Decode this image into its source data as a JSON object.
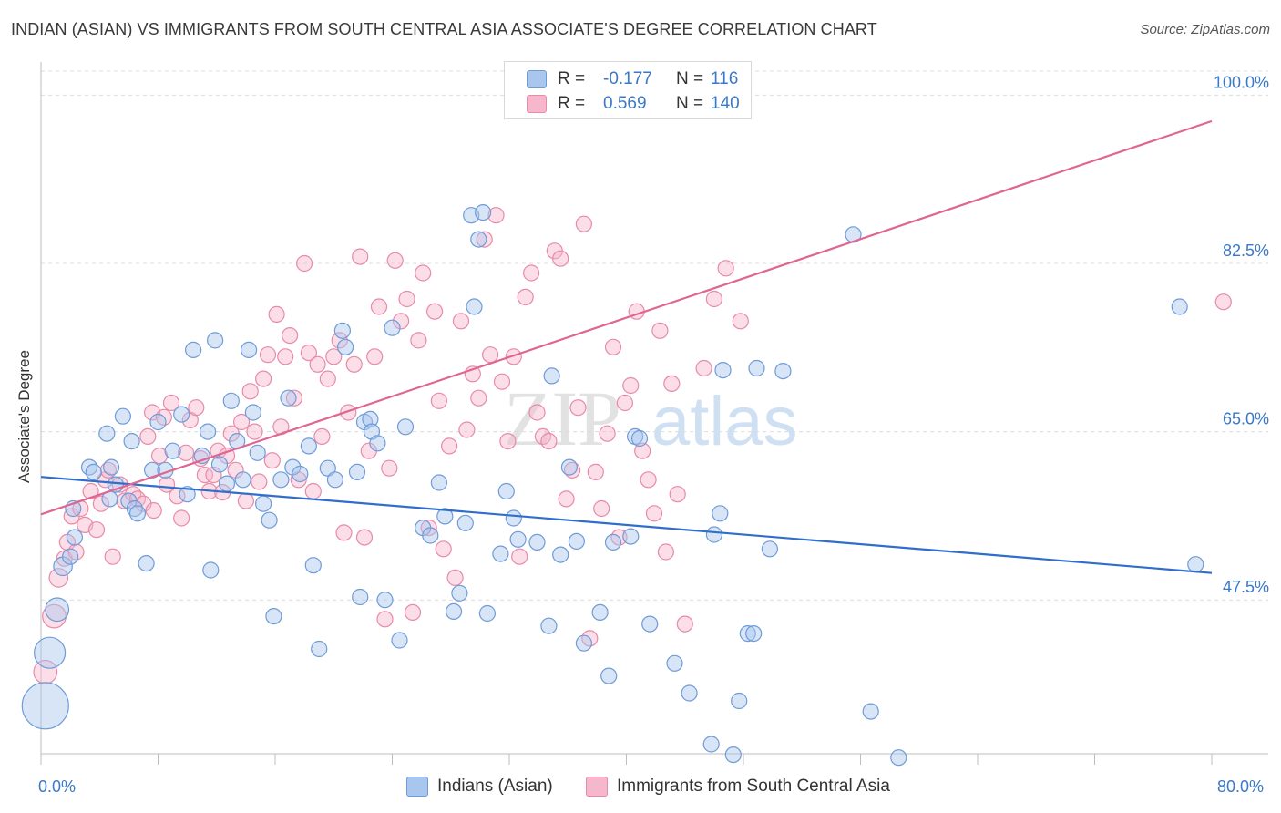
{
  "title": "INDIAN (ASIAN) VS IMMIGRANTS FROM SOUTH CENTRAL ASIA ASSOCIATE'S DEGREE CORRELATION CHART",
  "source": "Source: ZipAtlas.com",
  "watermark": {
    "zip": "ZIP",
    "atlas": "atlas"
  },
  "colors": {
    "blue_fill": "#a9c6ee",
    "blue_stroke": "#6f9bd8",
    "blue_line": "#2f6fcb",
    "pink_fill": "#f6b6cb",
    "pink_stroke": "#e88aa8",
    "pink_line": "#e06692",
    "axis_text": "#3a78c9",
    "grid": "#dcdcdc"
  },
  "legend_top": [
    {
      "series": "Indians (Asian)",
      "r_label": "R =",
      "r_value": "-0.177",
      "n_label": "N =",
      "n_value": "116"
    },
    {
      "series": "Immigrants from South Central Asia",
      "r_label": "R =",
      "r_value": "0.569",
      "n_label": "N =",
      "n_value": "140"
    }
  ],
  "legend_bottom": [
    "Indians (Asian)",
    "Immigrants from South Central Asia"
  ],
  "chart_data": {
    "type": "scatter",
    "title": "INDIAN (ASIAN) VS IMMIGRANTS FROM SOUTH CENTRAL ASIA ASSOCIATE'S DEGREE CORRELATION CHART",
    "xlabel": "",
    "ylabel": "Associate's Degree",
    "x_tick_labels": [
      "0.0%",
      "80.0%"
    ],
    "y_tick_labels": [
      "47.5%",
      "65.0%",
      "82.5%",
      "100.0%"
    ],
    "y_ticks": [
      47.5,
      65.0,
      82.5,
      100.0
    ],
    "xlim": [
      0,
      80
    ],
    "ylim": [
      31.5,
      102.5
    ],
    "grid": "horizontal dashed",
    "legend": "top-center",
    "series": [
      {
        "name": "Indians (Asian)",
        "trend": {
          "x": [
            0,
            80
          ],
          "y": [
            60.3,
            50.3
          ]
        },
        "points": [
          [
            0.3,
            36.5,
            3
          ],
          [
            0.6,
            42.0,
            2
          ],
          [
            1.1,
            46.5,
            1.5
          ],
          [
            1.5,
            51.0,
            1.2
          ],
          [
            2.0,
            52.0,
            1
          ],
          [
            2.2,
            57.0,
            1
          ],
          [
            2.3,
            54.0,
            1
          ],
          [
            3.3,
            61.3,
            1
          ],
          [
            3.6,
            60.8,
            1
          ],
          [
            4.5,
            64.8,
            1
          ],
          [
            4.8,
            61.3,
            1
          ],
          [
            4.7,
            58.0,
            1
          ],
          [
            5.1,
            59.5,
            1
          ],
          [
            5.6,
            66.6,
            1
          ],
          [
            6.0,
            57.8,
            1
          ],
          [
            6.2,
            64.0,
            1
          ],
          [
            6.4,
            57.0,
            1
          ],
          [
            6.6,
            56.5,
            1
          ],
          [
            7.2,
            51.3,
            1
          ],
          [
            7.6,
            61.0,
            1
          ],
          [
            8.0,
            66.0,
            1
          ],
          [
            8.5,
            61.0,
            1
          ],
          [
            9.0,
            63.0,
            1
          ],
          [
            9.6,
            66.8,
            1
          ],
          [
            10.0,
            58.5,
            1
          ],
          [
            10.4,
            73.5,
            1
          ],
          [
            11.0,
            62.5,
            1
          ],
          [
            11.4,
            65.0,
            1
          ],
          [
            11.9,
            74.5,
            1
          ],
          [
            11.6,
            50.6,
            1
          ],
          [
            12.2,
            61.6,
            1
          ],
          [
            12.7,
            59.6,
            1
          ],
          [
            13.0,
            68.2,
            1
          ],
          [
            13.4,
            64.0,
            1
          ],
          [
            13.8,
            60.0,
            1
          ],
          [
            14.2,
            73.5,
            1
          ],
          [
            14.5,
            67.0,
            1
          ],
          [
            14.8,
            62.8,
            1
          ],
          [
            15.2,
            57.5,
            1
          ],
          [
            15.6,
            55.8,
            1
          ],
          [
            15.9,
            45.8,
            1
          ],
          [
            16.4,
            60.0,
            1
          ],
          [
            16.9,
            68.5,
            1
          ],
          [
            17.2,
            61.3,
            1
          ],
          [
            17.7,
            60.6,
            1
          ],
          [
            18.3,
            63.5,
            1
          ],
          [
            18.6,
            51.1,
            1
          ],
          [
            19.0,
            42.4,
            1
          ],
          [
            19.6,
            61.2,
            1
          ],
          [
            20.1,
            60.0,
            1
          ],
          [
            20.8,
            73.8,
            1
          ],
          [
            20.6,
            75.5,
            1
          ],
          [
            21.6,
            60.8,
            1
          ],
          [
            21.8,
            47.8,
            1
          ],
          [
            22.1,
            66.0,
            1
          ],
          [
            22.5,
            66.3,
            1
          ],
          [
            22.6,
            65.0,
            1
          ],
          [
            23.0,
            63.8,
            1
          ],
          [
            23.5,
            47.5,
            1
          ],
          [
            24.0,
            75.8,
            1
          ],
          [
            24.5,
            43.3,
            1
          ],
          [
            24.9,
            65.5,
            1
          ],
          [
            26.1,
            55.0,
            1
          ],
          [
            26.6,
            54.2,
            1
          ],
          [
            27.2,
            59.7,
            1
          ],
          [
            27.6,
            56.2,
            1
          ],
          [
            28.2,
            46.3,
            1
          ],
          [
            28.6,
            48.2,
            1
          ],
          [
            29.0,
            55.5,
            1
          ],
          [
            29.4,
            87.5,
            1
          ],
          [
            29.9,
            85.0,
            1
          ],
          [
            29.6,
            78.0,
            1
          ],
          [
            30.2,
            87.8,
            1
          ],
          [
            30.5,
            46.1,
            1
          ],
          [
            31.4,
            52.3,
            1
          ],
          [
            31.8,
            58.8,
            1
          ],
          [
            32.3,
            56.0,
            1
          ],
          [
            32.6,
            53.8,
            1
          ],
          [
            33.9,
            53.5,
            1
          ],
          [
            34.7,
            44.8,
            1
          ],
          [
            34.9,
            70.8,
            1
          ],
          [
            35.5,
            52.2,
            1
          ],
          [
            36.1,
            61.3,
            1
          ],
          [
            36.6,
            53.6,
            1
          ],
          [
            37.1,
            43.0,
            1
          ],
          [
            38.2,
            46.2,
            1
          ],
          [
            38.8,
            39.6,
            1
          ],
          [
            39.1,
            53.5,
            1
          ],
          [
            40.3,
            54.1,
            1
          ],
          [
            40.6,
            64.5,
            1
          ],
          [
            40.9,
            64.3,
            1
          ],
          [
            41.6,
            45.0,
            1
          ],
          [
            43.3,
            40.9,
            1
          ],
          [
            44.3,
            37.8,
            1
          ],
          [
            46.0,
            54.3,
            1
          ],
          [
            45.8,
            32.5,
            1
          ],
          [
            46.4,
            56.5,
            1
          ],
          [
            47.3,
            31.4,
            1
          ],
          [
            46.6,
            71.4,
            1
          ],
          [
            47.7,
            37.0,
            1
          ],
          [
            48.3,
            44.0,
            1
          ],
          [
            48.7,
            44.0,
            1
          ],
          [
            48.9,
            71.6,
            1
          ],
          [
            49.8,
            52.8,
            1
          ],
          [
            50.7,
            71.3,
            1
          ],
          [
            55.5,
            85.5,
            1
          ],
          [
            56.7,
            35.9,
            1
          ],
          [
            58.6,
            31.1,
            1
          ],
          [
            77.8,
            78.0,
            1
          ],
          [
            78.9,
            51.2,
            1
          ]
        ]
      },
      {
        "name": "Immigrants from South Central Asia",
        "trend": {
          "x": [
            0,
            80
          ],
          "y": [
            56.4,
            97.3
          ]
        },
        "points": [
          [
            0.3,
            40.0,
            1.5
          ],
          [
            0.9,
            45.8,
            1.5
          ],
          [
            1.2,
            49.8,
            1.2
          ],
          [
            1.6,
            51.8,
            1
          ],
          [
            1.8,
            53.5,
            1
          ],
          [
            2.1,
            56.2,
            1
          ],
          [
            2.4,
            52.5,
            1
          ],
          [
            2.7,
            57.0,
            1
          ],
          [
            3.0,
            55.3,
            1
          ],
          [
            3.4,
            58.8,
            1
          ],
          [
            3.8,
            54.8,
            1
          ],
          [
            4.1,
            57.5,
            1
          ],
          [
            4.4,
            60.0,
            1
          ],
          [
            4.6,
            61.0,
            1
          ],
          [
            4.9,
            52.0,
            1
          ],
          [
            5.4,
            59.5,
            1
          ],
          [
            5.7,
            57.8,
            1
          ],
          [
            6.3,
            58.5,
            1
          ],
          [
            6.6,
            58.0,
            1
          ],
          [
            7.0,
            57.5,
            1
          ],
          [
            7.3,
            64.5,
            1
          ],
          [
            7.6,
            67.0,
            1
          ],
          [
            7.7,
            56.8,
            1
          ],
          [
            8.1,
            62.5,
            1
          ],
          [
            8.4,
            66.5,
            1
          ],
          [
            8.6,
            59.5,
            1
          ],
          [
            8.9,
            68.0,
            1
          ],
          [
            9.3,
            58.3,
            1
          ],
          [
            9.6,
            56.0,
            1
          ],
          [
            9.9,
            62.8,
            1
          ],
          [
            10.2,
            66.2,
            1
          ],
          [
            10.6,
            67.5,
            1
          ],
          [
            10.9,
            62.2,
            1
          ],
          [
            11.2,
            60.5,
            1
          ],
          [
            11.5,
            58.8,
            1
          ],
          [
            11.8,
            60.5,
            1
          ],
          [
            12.1,
            63.0,
            1
          ],
          [
            12.4,
            58.7,
            1
          ],
          [
            12.7,
            62.5,
            1
          ],
          [
            13.0,
            64.8,
            1
          ],
          [
            13.3,
            61.0,
            1
          ],
          [
            13.7,
            66.0,
            1
          ],
          [
            14.0,
            57.8,
            1
          ],
          [
            14.3,
            69.2,
            1
          ],
          [
            14.6,
            65.0,
            1
          ],
          [
            14.9,
            59.8,
            1
          ],
          [
            15.2,
            70.5,
            1
          ],
          [
            15.5,
            73.0,
            1
          ],
          [
            15.8,
            62.0,
            1
          ],
          [
            16.1,
            77.2,
            1
          ],
          [
            16.4,
            65.5,
            1
          ],
          [
            16.7,
            72.8,
            1
          ],
          [
            17.0,
            75.0,
            1
          ],
          [
            17.3,
            68.5,
            1
          ],
          [
            17.6,
            60.0,
            1
          ],
          [
            18.0,
            82.5,
            1
          ],
          [
            18.3,
            73.2,
            1
          ],
          [
            18.6,
            58.8,
            1
          ],
          [
            18.9,
            72.0,
            1
          ],
          [
            19.2,
            64.5,
            1
          ],
          [
            19.6,
            70.5,
            1
          ],
          [
            20.0,
            72.8,
            1
          ],
          [
            20.4,
            74.5,
            1
          ],
          [
            20.7,
            54.5,
            1
          ],
          [
            21.0,
            67.0,
            1
          ],
          [
            21.4,
            72.0,
            1
          ],
          [
            21.8,
            83.2,
            1
          ],
          [
            22.1,
            54.0,
            1
          ],
          [
            22.4,
            63.0,
            1
          ],
          [
            22.8,
            72.8,
            1
          ],
          [
            23.1,
            78.0,
            1
          ],
          [
            23.5,
            45.5,
            1
          ],
          [
            23.8,
            61.2,
            1
          ],
          [
            24.2,
            82.8,
            1
          ],
          [
            24.6,
            76.5,
            1
          ],
          [
            25.0,
            78.8,
            1
          ],
          [
            25.4,
            46.2,
            1
          ],
          [
            25.8,
            74.5,
            1
          ],
          [
            26.1,
            81.5,
            1
          ],
          [
            26.5,
            55.0,
            1
          ],
          [
            26.9,
            77.5,
            1
          ],
          [
            27.2,
            68.2,
            1
          ],
          [
            27.5,
            52.8,
            1
          ],
          [
            27.9,
            63.5,
            1
          ],
          [
            28.3,
            49.8,
            1
          ],
          [
            28.7,
            76.5,
            1
          ],
          [
            29.1,
            65.2,
            1
          ],
          [
            29.5,
            71.0,
            1
          ],
          [
            29.9,
            68.5,
            1
          ],
          [
            30.3,
            85.0,
            1
          ],
          [
            30.7,
            73.0,
            1
          ],
          [
            31.1,
            87.5,
            1
          ],
          [
            31.5,
            70.2,
            1
          ],
          [
            31.9,
            64.0,
            1
          ],
          [
            32.3,
            72.8,
            1
          ],
          [
            32.7,
            52.0,
            1
          ],
          [
            33.1,
            79.0,
            1
          ],
          [
            33.5,
            81.5,
            1
          ],
          [
            33.9,
            67.0,
            1
          ],
          [
            34.3,
            64.5,
            1
          ],
          [
            34.7,
            64.0,
            1
          ],
          [
            35.1,
            83.8,
            1
          ],
          [
            35.5,
            83.0,
            1
          ],
          [
            35.9,
            58.0,
            1
          ],
          [
            36.3,
            61.0,
            1
          ],
          [
            36.7,
            67.5,
            1
          ],
          [
            37.1,
            86.6,
            1
          ],
          [
            37.5,
            43.5,
            1
          ],
          [
            37.9,
            60.8,
            1
          ],
          [
            38.3,
            57.0,
            1
          ],
          [
            38.7,
            64.8,
            1
          ],
          [
            39.1,
            73.8,
            1
          ],
          [
            39.5,
            54.0,
            1
          ],
          [
            39.9,
            68.0,
            1
          ],
          [
            40.3,
            69.8,
            1
          ],
          [
            40.7,
            77.5,
            1
          ],
          [
            41.1,
            63.0,
            1
          ],
          [
            41.5,
            60.0,
            1
          ],
          [
            41.9,
            56.5,
            1
          ],
          [
            42.3,
            75.5,
            1
          ],
          [
            42.7,
            52.5,
            1
          ],
          [
            43.1,
            70.0,
            1
          ],
          [
            43.5,
            58.5,
            1
          ],
          [
            44.0,
            45.0,
            1
          ],
          [
            45.3,
            71.6,
            1
          ],
          [
            46.0,
            78.8,
            1
          ],
          [
            46.8,
            82.0,
            1
          ],
          [
            47.8,
            76.5,
            1
          ],
          [
            80.8,
            78.5,
            1
          ]
        ]
      }
    ]
  }
}
